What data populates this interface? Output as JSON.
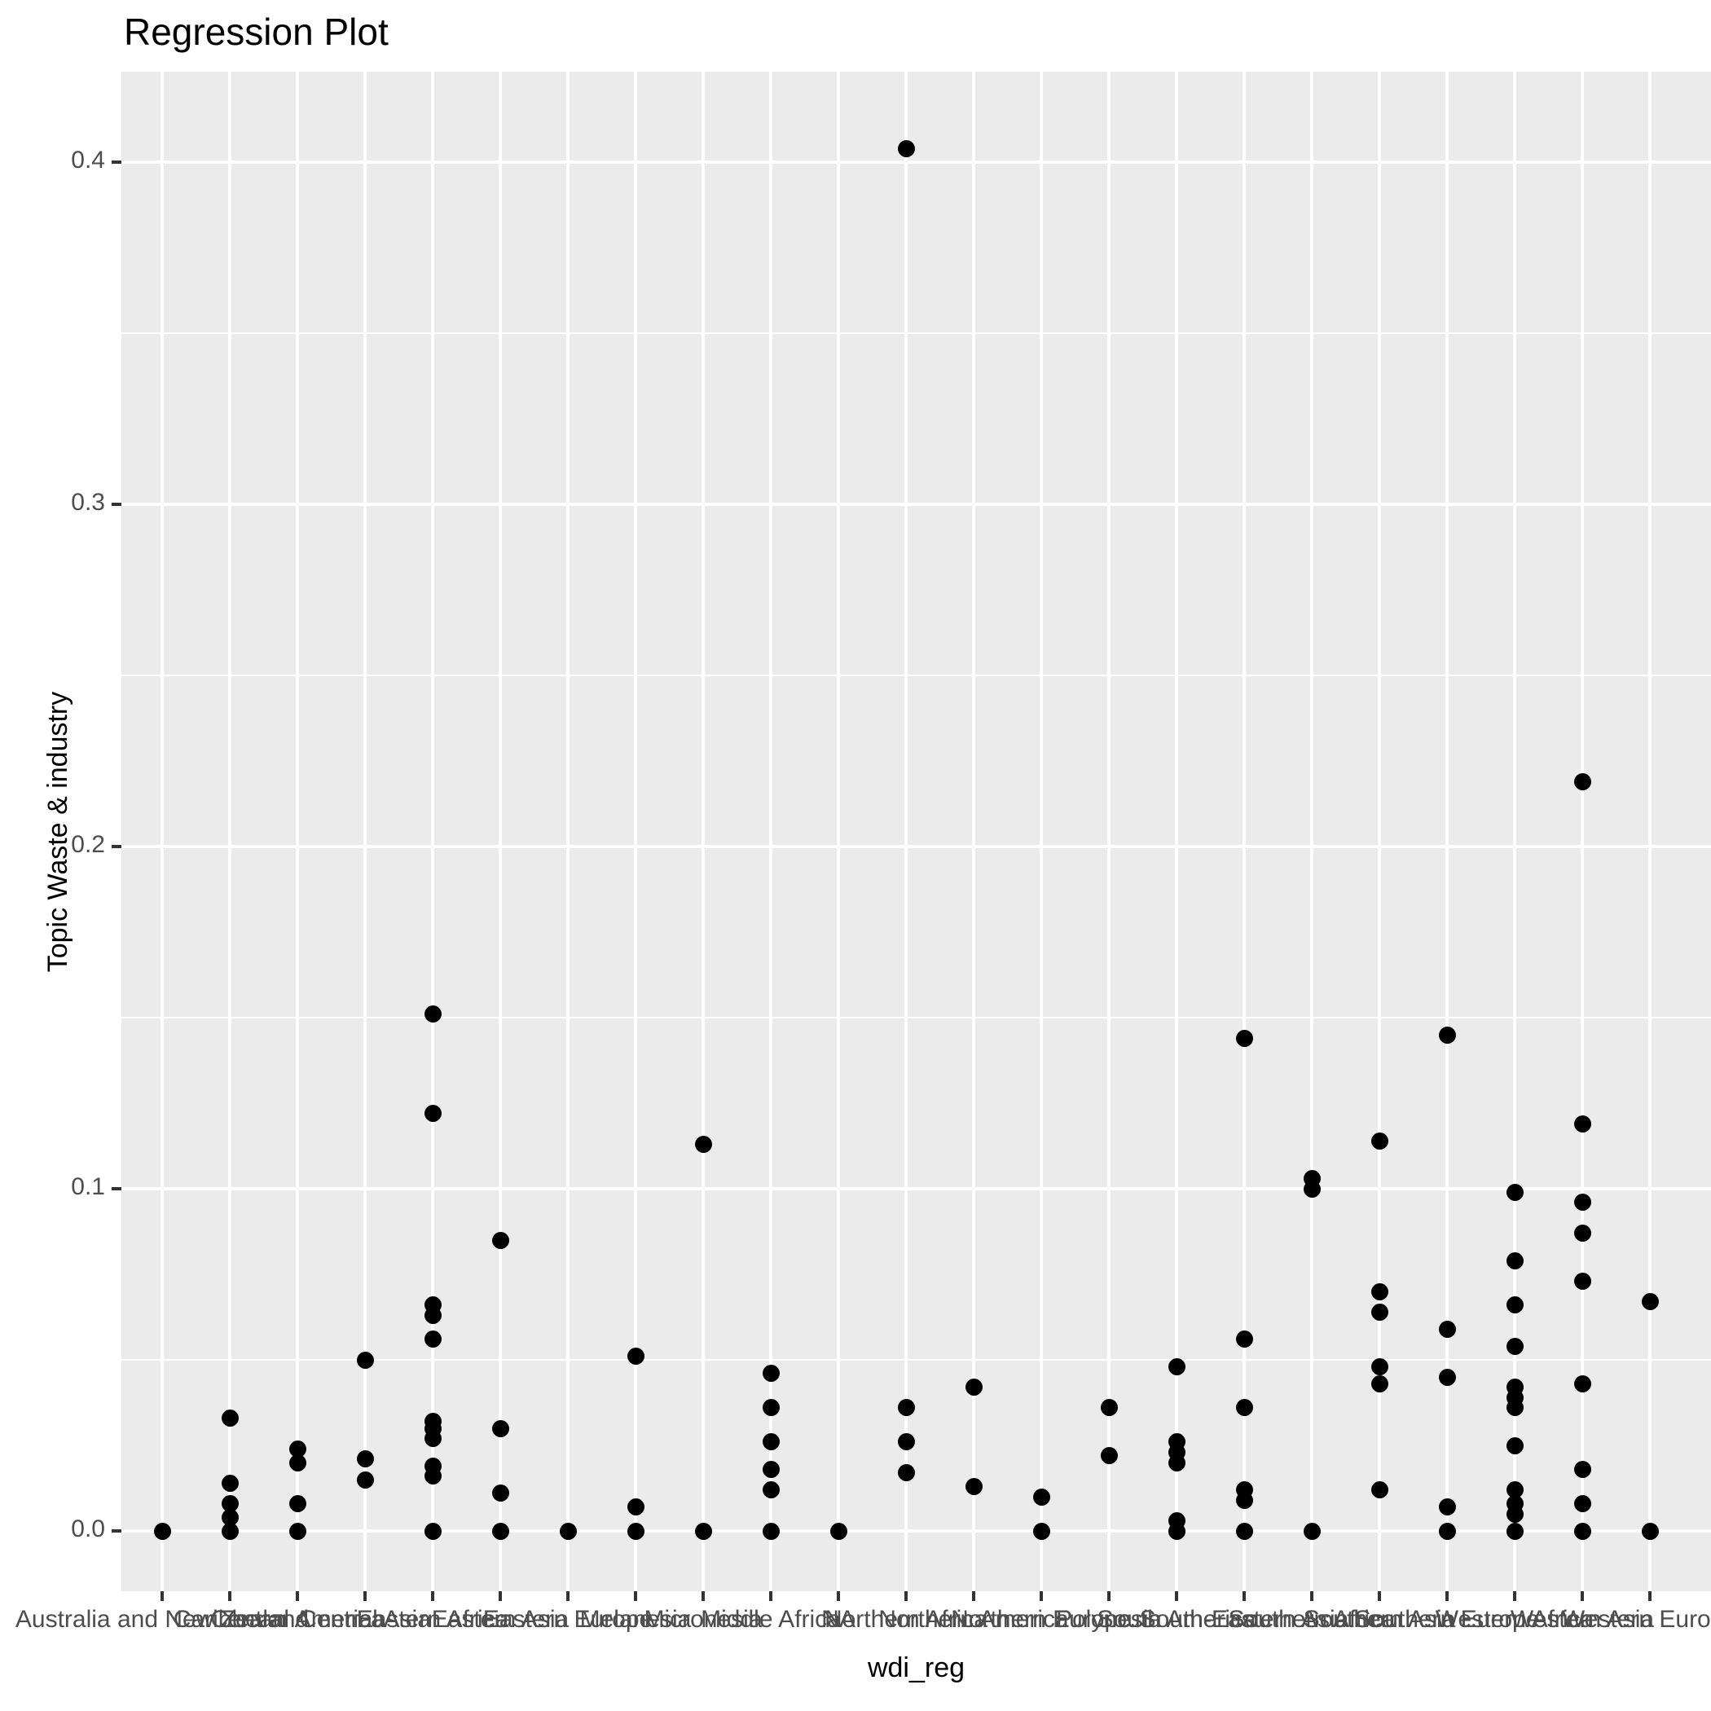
{
  "chart_data": {
    "type": "scatter",
    "title": "Regression Plot",
    "xlabel": "wdi_reg",
    "ylabel": "Topic Waste & industry",
    "legend": "none",
    "grid": "white major gridlines at categories and y ticks, minor horizontal at 0.05 steps, grey panel",
    "ylim": [
      -0.02,
      0.43
    ],
    "ytick_labels": [
      "0.0",
      "0.1",
      "0.2",
      "0.3",
      "0.4"
    ],
    "ytick_values": [
      0.0,
      0.1,
      0.2,
      0.3,
      0.4
    ],
    "minor_ytick_values": [
      0.05,
      0.15,
      0.25,
      0.35
    ],
    "colors": {
      "panel_bg": "#EBEBEB",
      "grid": "#FFFFFF",
      "point": "#000000",
      "tick": "#333333",
      "tick_label": "#4D4D4D",
      "text": "#000000"
    },
    "categories": [
      "Australia and New Zealand",
      "Caribbean",
      "Central America",
      "Central Asia",
      "Eastern Africa",
      "Eastern Asia",
      "Eastern Europe",
      "Melanesia",
      "Micronesia",
      "Middle Africa",
      "NA",
      "Northern Africa",
      "Northern America",
      "Northern Europe",
      "Polynesia",
      "South America",
      "South-Eastern Asia",
      "Southern Africa",
      "Southern Asia",
      "Southern Europe",
      "Western Africa",
      "Western Asia",
      "Western Europe"
    ],
    "groups": [
      {
        "category": "Australia and New Zealand",
        "values": [
          0.0
        ]
      },
      {
        "category": "Caribbean",
        "values": [
          0.033,
          0.014,
          0.008,
          0.004,
          0.0
        ]
      },
      {
        "category": "Central America",
        "values": [
          0.024,
          0.02,
          0.008,
          0.0
        ]
      },
      {
        "category": "Central Asia",
        "values": [
          0.05,
          0.021,
          0.015
        ]
      },
      {
        "category": "Eastern Africa",
        "values": [
          0.151,
          0.122,
          0.066,
          0.063,
          0.056,
          0.032,
          0.03,
          0.027,
          0.019,
          0.016,
          0.0
        ]
      },
      {
        "category": "Eastern Asia",
        "values": [
          0.085,
          0.03,
          0.011,
          0.0
        ]
      },
      {
        "category": "Eastern Europe",
        "values": [
          0.0
        ]
      },
      {
        "category": "Melanesia",
        "values": [
          0.051,
          0.007,
          0.0
        ]
      },
      {
        "category": "Micronesia",
        "values": [
          0.113,
          0.0
        ]
      },
      {
        "category": "Middle Africa",
        "values": [
          0.046,
          0.036,
          0.026,
          0.018,
          0.012,
          0.0
        ]
      },
      {
        "category": "NA",
        "values": [
          0.0
        ]
      },
      {
        "category": "Northern Africa",
        "values": [
          0.404,
          0.036,
          0.026,
          0.017
        ]
      },
      {
        "category": "Northern America",
        "values": [
          0.042,
          0.013
        ]
      },
      {
        "category": "Northern Europe",
        "values": [
          0.01,
          0.0
        ]
      },
      {
        "category": "Polynesia",
        "values": [
          0.036,
          0.022
        ]
      },
      {
        "category": "South America",
        "values": [
          0.048,
          0.026,
          0.023,
          0.02,
          0.003,
          0.0
        ]
      },
      {
        "category": "South-Eastern Asia",
        "values": [
          0.144,
          0.056,
          0.036,
          0.012,
          0.009,
          0.0
        ]
      },
      {
        "category": "Southern Africa",
        "values": [
          0.103,
          0.1,
          0.0
        ]
      },
      {
        "category": "Southern Asia",
        "values": [
          0.114,
          0.07,
          0.064,
          0.048,
          0.043,
          0.012
        ]
      },
      {
        "category": "Southern Europe",
        "values": [
          0.145,
          0.059,
          0.045,
          0.007,
          0.0
        ]
      },
      {
        "category": "Western Africa",
        "values": [
          0.099,
          0.079,
          0.066,
          0.054,
          0.042,
          0.039,
          0.036,
          0.025,
          0.012,
          0.008,
          0.005,
          0.0
        ]
      },
      {
        "category": "Western Asia",
        "values": [
          0.219,
          0.119,
          0.096,
          0.087,
          0.073,
          0.043,
          0.018,
          0.008,
          0.0
        ]
      },
      {
        "category": "Western Europe",
        "values": [
          0.067,
          0.0
        ]
      }
    ]
  }
}
